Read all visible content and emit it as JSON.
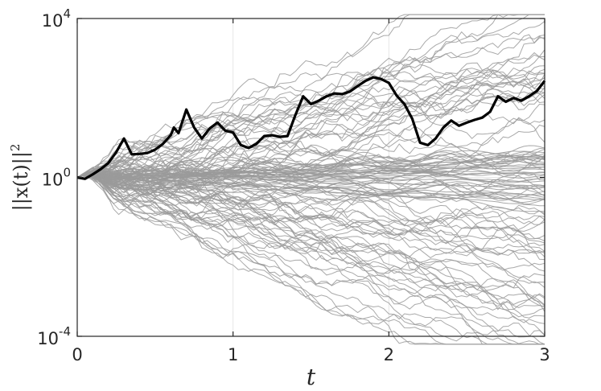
{
  "chart_data": {
    "type": "line",
    "xlabel": "t",
    "ylabel": "||x(t)||",
    "ylabel_superscript": "2",
    "xlim": [
      0,
      3
    ],
    "ylim": [
      0.0001,
      10000
    ],
    "yscale": "log",
    "grid": true,
    "xticks": [
      0,
      1,
      2,
      3
    ],
    "xtick_labels": [
      "0",
      "1",
      "2",
      "3"
    ],
    "yticks": [
      0.0001,
      1,
      10000
    ],
    "ytick_labels": [
      {
        "base": "10",
        "exp": "-4"
      },
      {
        "base": "10",
        "exp": "0"
      },
      {
        "base": "10",
        "exp": "4"
      }
    ],
    "colors": {
      "highlight": "#000000",
      "background_series": "#9a9a9a",
      "axes": "#262626",
      "grid": "#e6e6e6"
    },
    "highlight_series": {
      "x": [
        0,
        0.05,
        0.1,
        0.15,
        0.2,
        0.25,
        0.3,
        0.35,
        0.4,
        0.45,
        0.5,
        0.55,
        0.6,
        0.62,
        0.65,
        0.7,
        0.75,
        0.8,
        0.85,
        0.9,
        0.95,
        1.0,
        1.05,
        1.1,
        1.15,
        1.2,
        1.25,
        1.3,
        1.35,
        1.4,
        1.45,
        1.5,
        1.55,
        1.6,
        1.65,
        1.7,
        1.75,
        1.8,
        1.85,
        1.9,
        1.95,
        2.0,
        2.05,
        2.1,
        2.15,
        2.2,
        2.25,
        2.3,
        2.35,
        2.4,
        2.45,
        2.5,
        2.55,
        2.6,
        2.65,
        2.7,
        2.75,
        2.8,
        2.85,
        2.9,
        2.95,
        3.0
      ],
      "y": [
        1.0,
        0.92,
        1.2,
        1.6,
        2.3,
        4.3,
        9.5,
        3.8,
        3.9,
        4.1,
        5.0,
        7.0,
        11.5,
        18.0,
        13.0,
        51.0,
        18.0,
        9.5,
        17.0,
        24.0,
        15.0,
        13.5,
        6.5,
        5.5,
        7.0,
        11.0,
        11.5,
        10.5,
        11.0,
        37.0,
        110.0,
        70.0,
        85.0,
        110.0,
        130.0,
        125.0,
        145.0,
        200.0,
        270.0,
        330.0,
        300.0,
        240.0,
        115.0,
        70.0,
        30.0,
        7.5,
        6.5,
        9.5,
        18.0,
        27.0,
        20.0,
        24.0,
        28.0,
        32.0,
        45.0,
        110.0,
        80.0,
        100.0,
        85.0,
        110.0,
        150.0,
        270.0
      ]
    },
    "background_series_count": 120
  }
}
